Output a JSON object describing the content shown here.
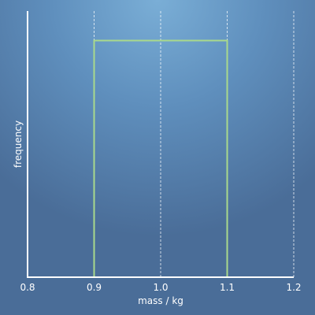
{
  "chart_data": {
    "type": "step",
    "xlabel": "mass / kg",
    "ylabel": "frequency",
    "xlim": [
      0.8,
      1.2
    ],
    "x_ticks": [
      "0.8",
      "0.9",
      "1.0",
      "1.1",
      "1.2"
    ],
    "bins": [
      {
        "x0": 0.9,
        "x1": 1.1,
        "value": 1.0
      }
    ],
    "ylim": [
      0,
      1.125
    ],
    "show_y_ticks": false,
    "grid": "vertical-dashed",
    "colors": {
      "line": "#a9d98c",
      "grid": "#ffffff",
      "axis": "#ffffff"
    }
  }
}
